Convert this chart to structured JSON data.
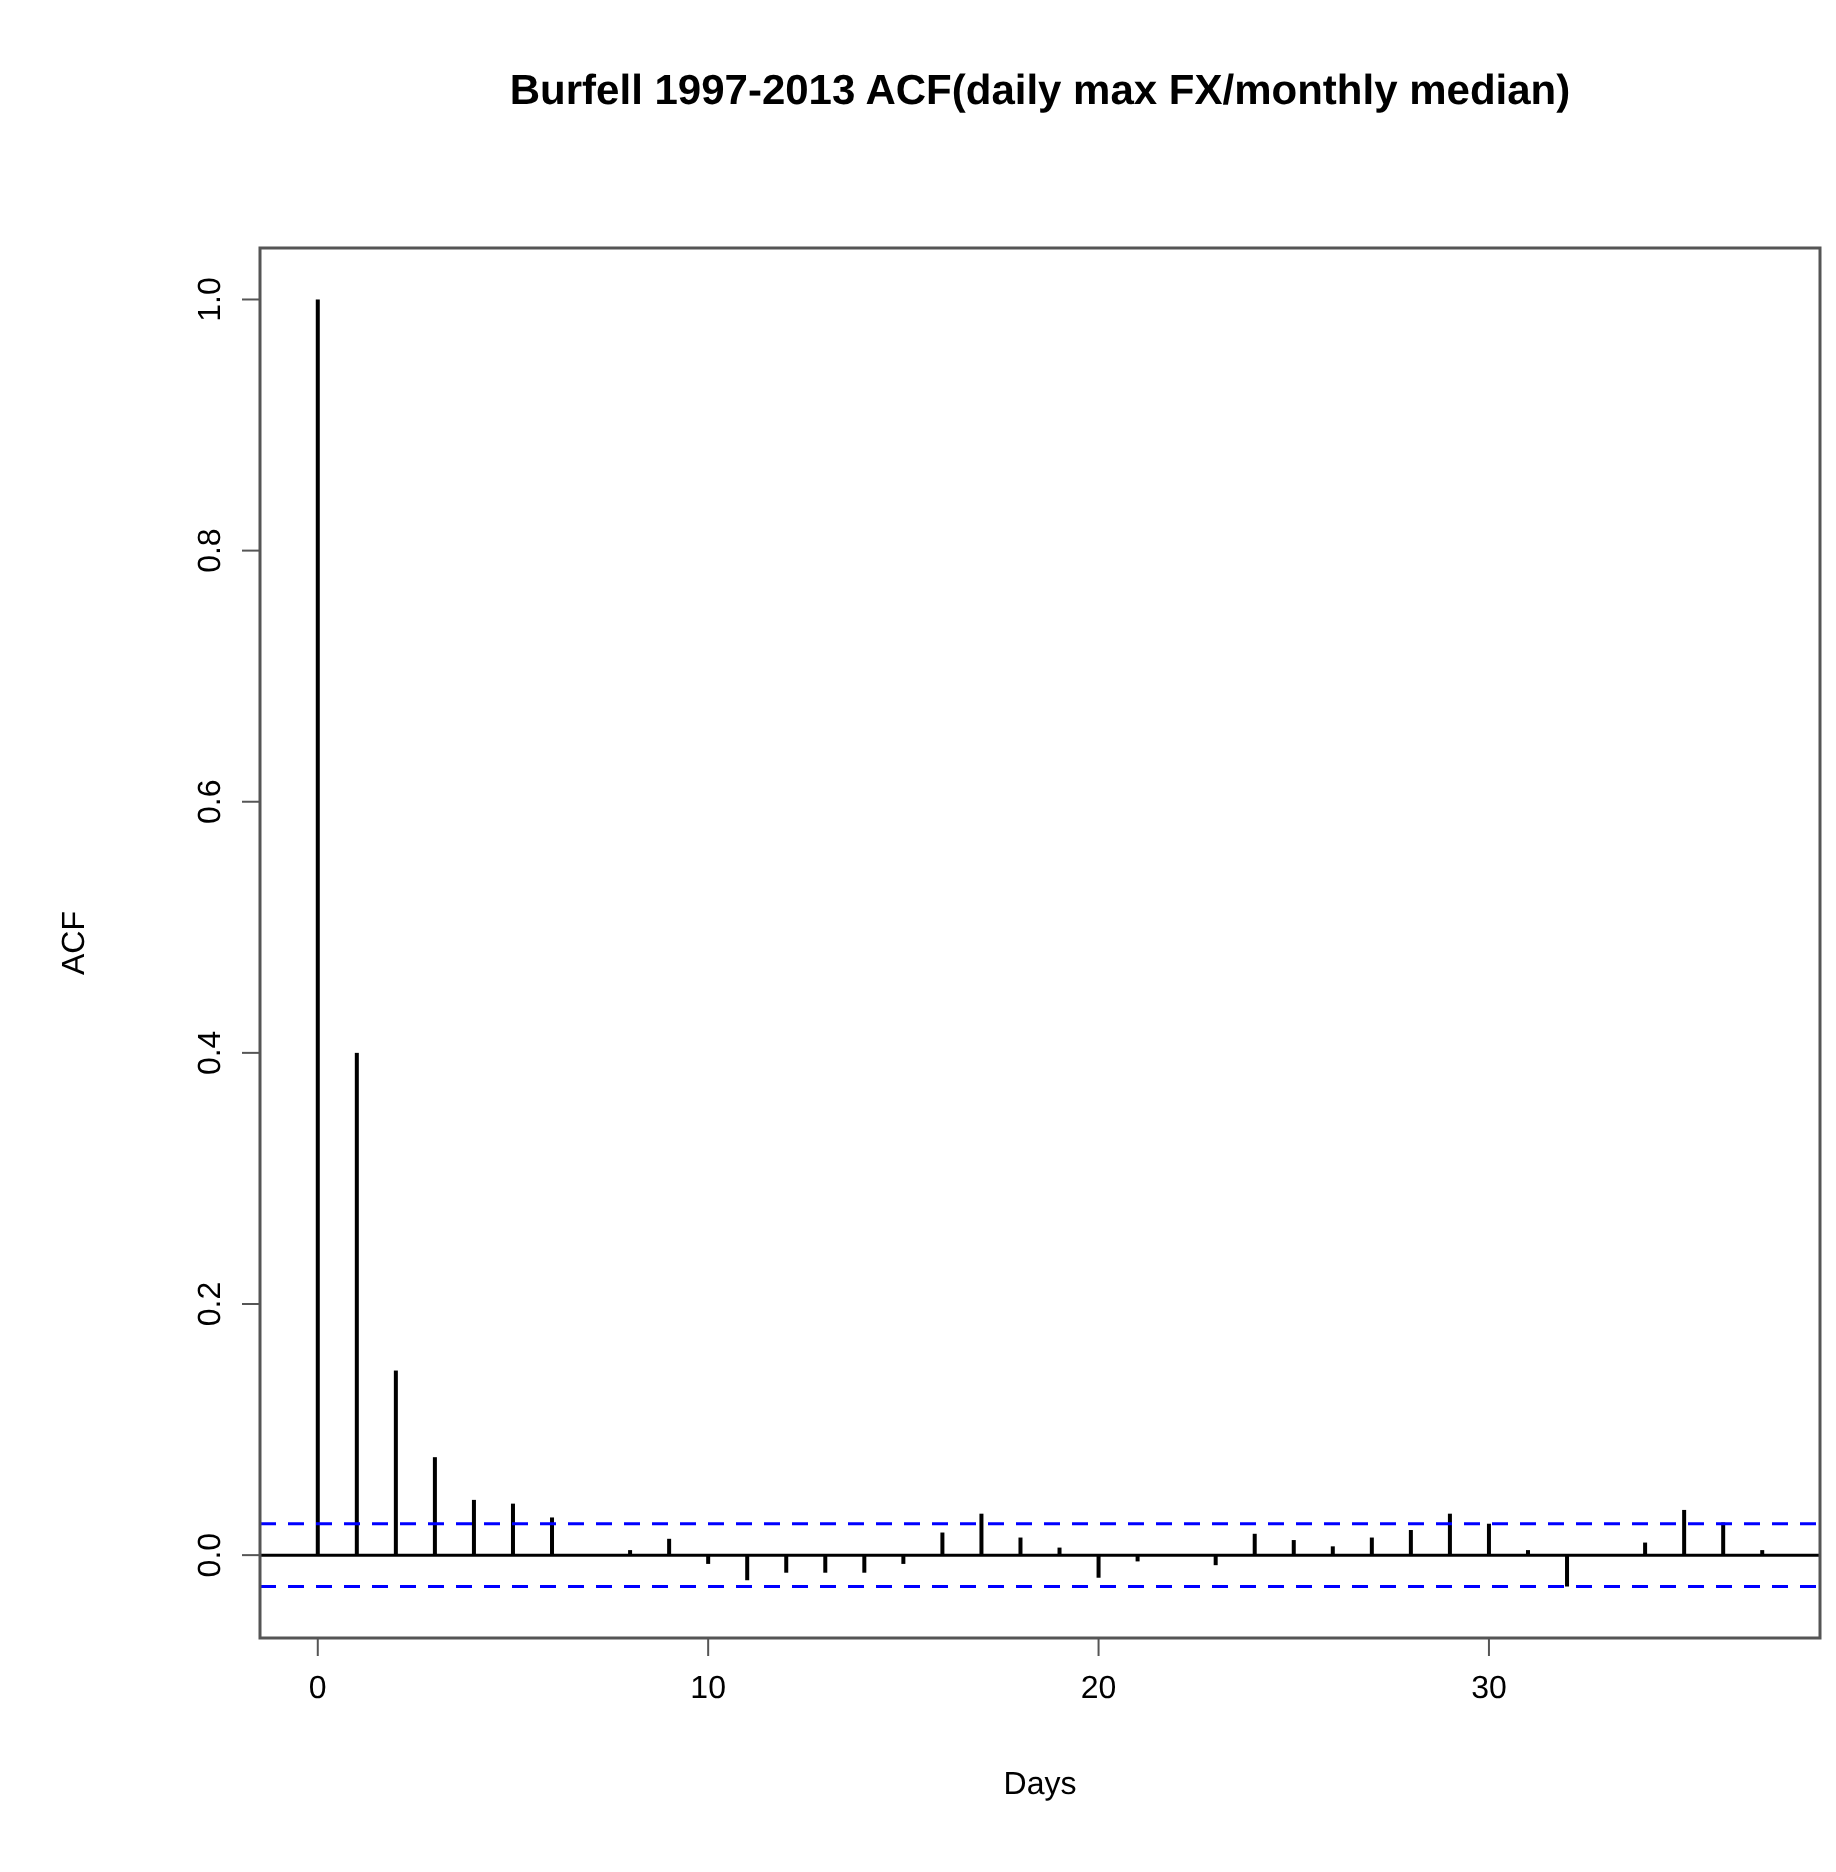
{
  "chart_data": {
    "type": "bar",
    "title": "Burfell 1997-2013 ACF(daily max FX/monthly median)",
    "xlabel": "Days",
    "ylabel": "ACF",
    "x": [
      0,
      1,
      2,
      3,
      4,
      5,
      6,
      7,
      8,
      9,
      10,
      11,
      12,
      13,
      14,
      15,
      16,
      17,
      18,
      19,
      20,
      21,
      22,
      23,
      24,
      25,
      26,
      27,
      28,
      29,
      30,
      31,
      32,
      33,
      34,
      35,
      36,
      37
    ],
    "series": [
      {
        "color": "#000000",
        "values": [
          1.0,
          0.4,
          0.147,
          0.078,
          0.044,
          0.041,
          0.03,
          null,
          0.004,
          0.013,
          -0.007,
          -0.02,
          -0.014,
          -0.014,
          -0.014,
          -0.007,
          0.018,
          0.033,
          0.014,
          0.006,
          -0.018,
          -0.005,
          null,
          -0.008,
          0.017,
          0.012,
          0.007,
          0.014,
          0.02,
          0.033,
          0.025,
          0.004,
          -0.025,
          null,
          0.01,
          0.036,
          0.026,
          0.004
        ]
      }
    ],
    "xlim": [
      -1.48,
      38.48
    ],
    "xticks": [
      0,
      10,
      20,
      30
    ],
    "ylim": [
      -0.066,
      1.041
    ],
    "yticks": [
      {
        "value": 0,
        "label": "0.0"
      },
      {
        "value": 0.2,
        "label": "0.2"
      },
      {
        "value": 0.4,
        "label": "0.4"
      },
      {
        "value": 0.6,
        "label": "0.6"
      },
      {
        "value": 0.8,
        "label": "0.8"
      },
      {
        "value": 1,
        "label": "1.0"
      }
    ],
    "ref_lines": [
      {
        "axis": "y",
        "value": 0,
        "color": "#000000",
        "line_style": "solid"
      },
      {
        "axis": "y",
        "value": 0.025,
        "color": "#0000ff",
        "line_style": "dashed"
      },
      {
        "axis": "y",
        "value": -0.025,
        "color": "#0000ff",
        "line_style": "dashed"
      }
    ],
    "grid": false
  }
}
